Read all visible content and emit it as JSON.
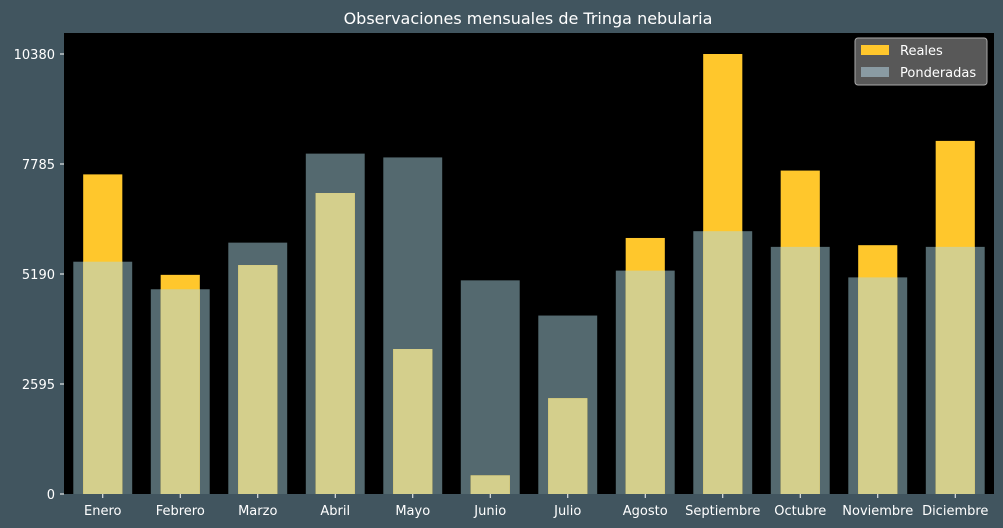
{
  "chart_data": {
    "type": "bar",
    "title": "Observaciones mensuales de Tringa nebularia",
    "xlabel": "",
    "ylabel": "",
    "categories": [
      "Enero",
      "Febrero",
      "Marzo",
      "Abril",
      "Mayo",
      "Junio",
      "Julio",
      "Agosto",
      "Septiembre",
      "Octubre",
      "Noviembre",
      "Diciembre"
    ],
    "series": [
      {
        "name": "Reales",
        "color": "#ffc72c",
        "values": [
          7540,
          5170,
          5400,
          7100,
          3420,
          440,
          2260,
          6040,
          10380,
          7630,
          5870,
          8330
        ]
      },
      {
        "name": "Ponderadas",
        "color": "#8a9ba3",
        "values": [
          5480,
          4830,
          5930,
          8030,
          7940,
          5040,
          4210,
          5270,
          6200,
          5830,
          5110,
          5830
        ]
      }
    ],
    "yticks": [
      0,
      2595,
      5190,
      7785,
      10380
    ],
    "ylim": [
      0,
      10380
    ],
    "grid": false,
    "legend_position": "top-right",
    "colors": {
      "background": "#41555f",
      "plot_area": "#000000",
      "overlap": "#d4cf8c",
      "legend_bg": "#585858"
    }
  }
}
